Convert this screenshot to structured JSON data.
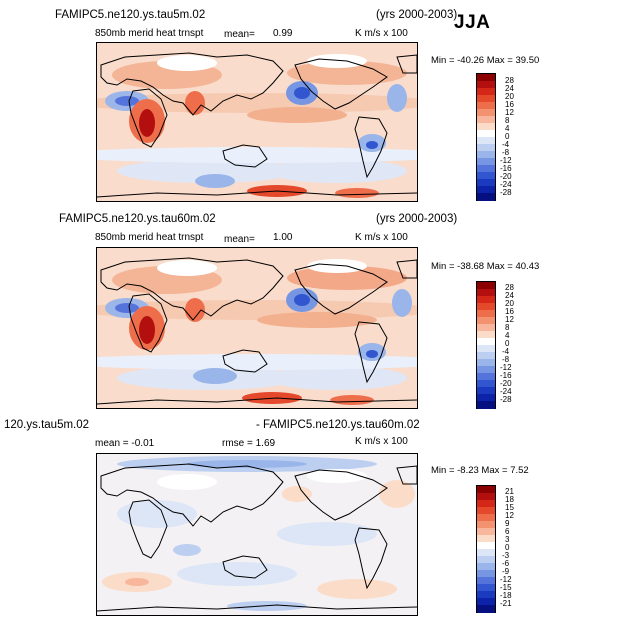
{
  "header": {
    "season": "JJA"
  },
  "panels": [
    {
      "title": "FAMIPC5.ne120.ys.tau5m.02",
      "years": "(yrs 2000-2003)",
      "subtitle": "850mb merid heat trnspt",
      "mean_label": "mean=",
      "mean_value": "0.99",
      "units": "K m/s x 100",
      "minmax": "Min = -40.26  Max =  39.50",
      "colorbar_ticks": [
        "28",
        "24",
        "20",
        "16",
        "12",
        "8",
        "4",
        "0",
        "-4",
        "-8",
        "-12",
        "-16",
        "-20",
        "-24",
        "-28"
      ]
    },
    {
      "title": "FAMIPC5.ne120.ys.tau60m.02",
      "years": "(yrs 2000-2003)",
      "subtitle": "850mb merid heat trnspt",
      "mean_label": "mean=",
      "mean_value": "1.00",
      "units": "K m/s x 100",
      "minmax": "Min = -38.68  Max =  40.43",
      "colorbar_ticks": [
        "28",
        "24",
        "20",
        "16",
        "12",
        "8",
        "4",
        "0",
        "-4",
        "-8",
        "-12",
        "-16",
        "-20",
        "-24",
        "-28"
      ]
    },
    {
      "title_left": "120.ys.tau5m.02",
      "title_right": "- FAMIPC5.ne120.ys.tau60m.02",
      "mean_text": "mean =  -0.01",
      "rmse_text": "rmse =   1.69",
      "units": "K m/s x 100",
      "minmax": "Min =  -8.23  Max =   7.52",
      "colorbar_ticks": [
        "21",
        "18",
        "15",
        "12",
        "9",
        "6",
        "3",
        "0",
        "-3",
        "-6",
        "-9",
        "-12",
        "-15",
        "-18",
        "-21"
      ]
    }
  ],
  "colors": {
    "scale": [
      "#8b0000",
      "#b30f0f",
      "#d42718",
      "#e4492c",
      "#ee6e4c",
      "#f3926f",
      "#f8b79c",
      "#fbdcc8",
      "#ffffff",
      "#dde6f7",
      "#bccff0",
      "#9ab5ea",
      "#7696e3",
      "#5474db",
      "#3256cf",
      "#1a3bc0",
      "#0c22a8",
      "#050f80"
    ],
    "land_outline": "#000000"
  }
}
